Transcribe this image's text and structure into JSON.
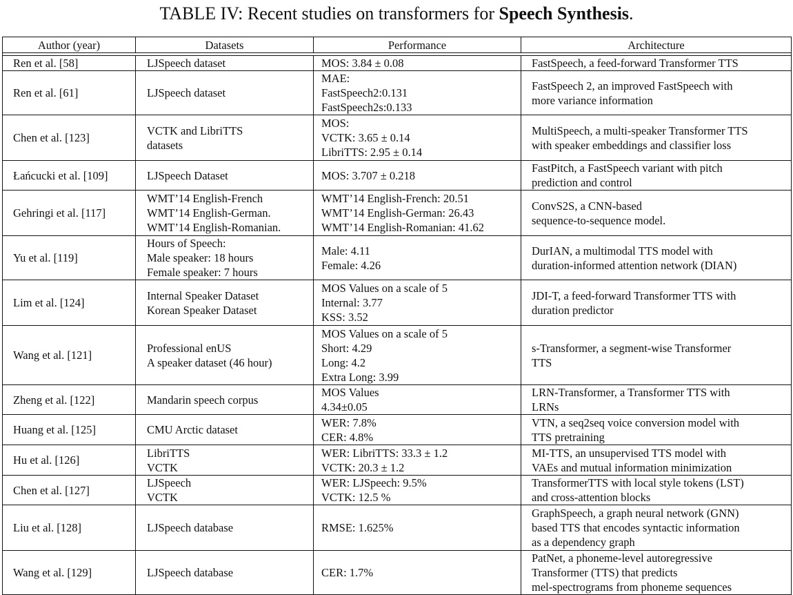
{
  "caption": {
    "prefix": "TABLE IV: Recent studies on transformers for ",
    "bold": "Speech Synthesis",
    "suffix": "."
  },
  "columns": [
    "Author (year)",
    "Datasets",
    "Performance",
    "Architecture"
  ],
  "rows": [
    {
      "h": 22,
      "author": "Ren et al. [58]",
      "datasets": [
        "LJSpeech dataset"
      ],
      "performance": [
        "MOS: 3.84 ± 0.08"
      ],
      "architecture": [
        "FastSpeech, a feed-forward Transformer TTS"
      ]
    },
    {
      "h": 63,
      "author": "Ren et al. [61]",
      "datasets": [
        "LJSpeech dataset"
      ],
      "performance": [
        "MAE:",
        "FastSpeech2:0.131",
        "FastSpeech2s:0.133"
      ],
      "architecture": [
        "FastSpeech 2, an improved FastSpeech with",
        "more variance information"
      ]
    },
    {
      "h": 66,
      "author": "Chen et al. [123]",
      "datasets": [
        "VCTK and LibriTTS",
        "datasets"
      ],
      "performance": [
        "MOS:",
        "VCTK: 3.65 ± 0.14",
        "LibriTTS: 2.95 ± 0.14"
      ],
      "architecture": [
        "MultiSpeech, a multi-speaker Transformer TTS",
        "with speaker embeddings and classifier loss"
      ]
    },
    {
      "h": 43,
      "author": "Łańcucki et al. [109]",
      "datasets": [
        "LJSpeech Dataset"
      ],
      "performance": [
        "MOS: 3.707 ± 0.218"
      ],
      "architecture": [
        "FastPitch, a FastSpeech variant with pitch",
        "prediction and control"
      ]
    },
    {
      "h": 66,
      "author": "Gehringi et al. [117]",
      "datasets": [
        "WMT’14 English-French",
        "WMT’14 English-German.",
        "WMT’14 English-Romanian."
      ],
      "performance": [
        "WMT’14 English-French: 20.51",
        "WMT’14 English-German: 26.43",
        "WMT’14 English-Romanian: 41.62"
      ],
      "architecture": [
        "ConvS2S, a CNN-based",
        "sequence-to-sequence model."
      ]
    },
    {
      "h": 63,
      "author": "Yu et al. [119]",
      "datasets": [
        "Hours of Speech:",
        "Male speaker: 18 hours",
        "Female speaker: 7 hours"
      ],
      "performance": [
        "Male: 4.11",
        "Female: 4.26"
      ],
      "architecture": [
        "DurIAN, a multimodal TTS model with",
        "duration-informed attention network (DIAN)"
      ]
    },
    {
      "h": 66,
      "author": "Lim et al. [124]",
      "datasets": [
        "Internal Speaker Dataset",
        "Korean Speaker Dataset"
      ],
      "performance": [
        "MOS Values on a scale of 5",
        "Internal: 3.77",
        "KSS: 3.52"
      ],
      "architecture": [
        "JDI-T, a feed-forward Transformer TTS with",
        "duration predictor"
      ]
    },
    {
      "h": 86,
      "author": "Wang et al. [121]",
      "datasets": [
        "Professional enUS",
        "A speaker dataset (46 hour)"
      ],
      "performance": [
        "MOS Values on a scale of 5",
        "Short: 4.29",
        "Long: 4.2",
        "Extra Long: 3.99"
      ],
      "architecture": [
        "s-Transformer, a segment-wise Transformer",
        "TTS"
      ]
    },
    {
      "h": 43,
      "author": "Zheng et al. [122]",
      "datasets": [
        "Mandarin speech corpus"
      ],
      "performance": [
        "MOS Values",
        "4.34±0.05"
      ],
      "architecture": [
        "LRN-Transformer, a Transformer TTS with",
        "LRNs"
      ]
    },
    {
      "h": 44,
      "author": "Huang et al. [125]",
      "datasets": [
        "CMU Arctic dataset"
      ],
      "performance": [
        "WER: 7.8%",
        "CER: 4.8%"
      ],
      "architecture": [
        "VTN, a seq2seq voice conversion model with",
        "TTS pretraining"
      ]
    },
    {
      "h": 44,
      "author": "Hu et al. [126]",
      "datasets": [
        "LibriTTS",
        "VCTK"
      ],
      "performance": [
        "WER: LibriTTS: 33.3 ± 1.2",
        "VCTK: 20.3 ± 1.2"
      ],
      "architecture": [
        "MI-TTS, an unsupervised TTS model with",
        "VAEs and mutual information minimization"
      ]
    },
    {
      "h": 43,
      "author": "Chen et al. [127]",
      "datasets": [
        "LJSpeech",
        "VCTK"
      ],
      "performance": [
        "WER: LJSpeech: 9.5%",
        "VCTK: 12.5 %"
      ],
      "architecture": [
        "TransformerTTS with local style tokens (LST)",
        "and cross-attention blocks"
      ]
    },
    {
      "h": 66,
      "author": "Liu et al. [128]",
      "datasets": [
        "LJSpeech database"
      ],
      "performance": [
        "RMSE: 1.625%"
      ],
      "architecture": [
        "GraphSpeech, a graph neural network (GNN)",
        "based TTS that encodes syntactic information",
        "as a dependency graph"
      ]
    },
    {
      "h": 64,
      "author": "Wang et al. [129]",
      "datasets": [
        "LJSpeech database"
      ],
      "performance": [
        "CER: 1.7%"
      ],
      "architecture": [
        "PatNet, a phoneme-level autoregressive",
        "Transformer (TTS) that predicts",
        "mel-spectrograms from phoneme sequences"
      ]
    }
  ]
}
